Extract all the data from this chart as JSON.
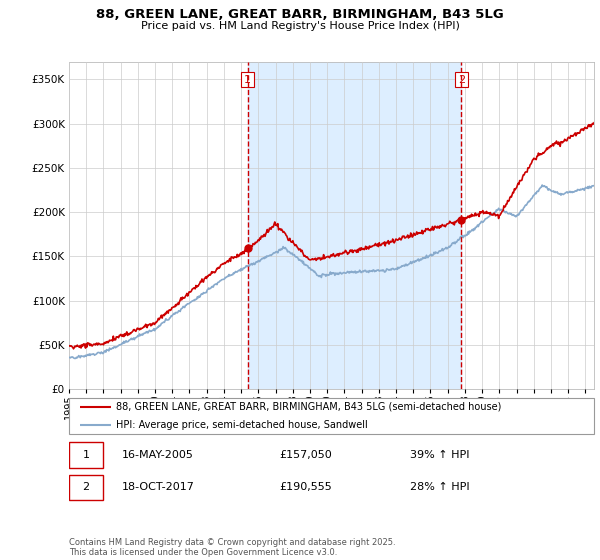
{
  "title": "88, GREEN LANE, GREAT BARR, BIRMINGHAM, B43 5LG",
  "subtitle": "Price paid vs. HM Land Registry's House Price Index (HPI)",
  "property_label": "88, GREEN LANE, GREAT BARR, BIRMINGHAM, B43 5LG (semi-detached house)",
  "hpi_label": "HPI: Average price, semi-detached house, Sandwell",
  "footer": "Contains HM Land Registry data © Crown copyright and database right 2025.\nThis data is licensed under the Open Government Licence v3.0.",
  "sale1": {
    "date": "16-MAY-2005",
    "price": 157050,
    "hpi_change": "39% ↑ HPI",
    "label": "1",
    "x": 2005.37
  },
  "sale2": {
    "date": "18-OCT-2017",
    "price": 190555,
    "hpi_change": "28% ↑ HPI",
    "label": "2",
    "x": 2017.79
  },
  "ylim": [
    0,
    370000
  ],
  "xlim_start": 1995,
  "xlim_end": 2025.5,
  "property_color": "#cc0000",
  "hpi_color": "#88aacc",
  "vline_color": "#cc0000",
  "shade_color": "#ddeeff",
  "background_color": "#ffffff",
  "grid_color": "#cccccc"
}
